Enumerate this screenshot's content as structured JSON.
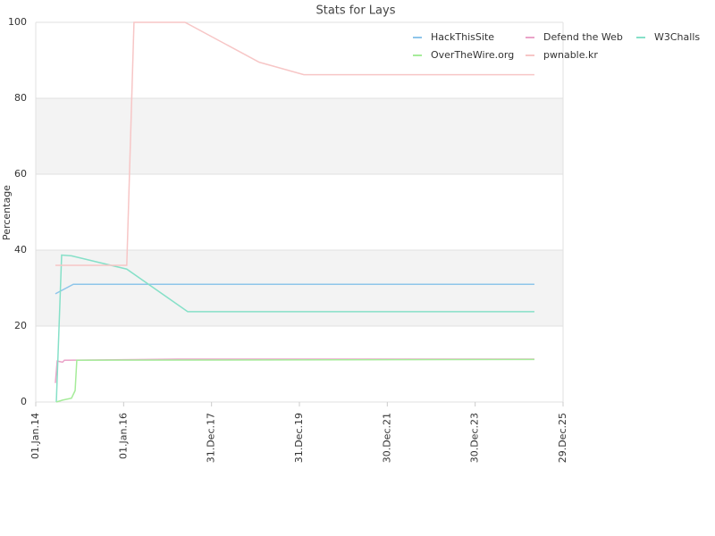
{
  "chart_data": {
    "type": "line",
    "title": "Stats for Lays",
    "ylabel": "Percentage",
    "xlim": [
      "2014-01-01",
      "2025-12-29"
    ],
    "xticks": [
      {
        "value": "2014-01-01",
        "label": "01.Jan.14"
      },
      {
        "value": "2016-01-01",
        "label": "01.Jan.16"
      },
      {
        "value": "2017-12-31",
        "label": "31.Dec.17"
      },
      {
        "value": "2019-12-31",
        "label": "31.Dec.19"
      },
      {
        "value": "2021-12-30",
        "label": "30.Dec.21"
      },
      {
        "value": "2023-12-30",
        "label": "30.Dec.23"
      },
      {
        "value": "2025-12-29",
        "label": "29.Dec.25"
      }
    ],
    "ylim": [
      0,
      100
    ],
    "yticks": [
      0,
      20,
      40,
      60,
      80,
      100
    ],
    "grid": true,
    "series": [
      {
        "name": "HackThisSite",
        "color": "#8ec5ea",
        "x": [
          "2014-06-13",
          "2014-11-09",
          "2025-05-05"
        ],
        "values": [
          28.5,
          31,
          31
        ]
      },
      {
        "name": "Defend the Web",
        "color": "#eaa3c8",
        "x": [
          "2014-06-13",
          "2014-06-28",
          "2014-08-12",
          "2014-08-27",
          "2017-04-03",
          "2025-05-05"
        ],
        "values": [
          5,
          10.8,
          10.5,
          11,
          11.3,
          11.3
        ]
      },
      {
        "name": "W3Challs",
        "color": "#86e0c8",
        "x": [
          "2014-06-21",
          "2014-08-04",
          "2014-10-25",
          "2016-01-27",
          "2017-06-16",
          "2025-05-05"
        ],
        "values": [
          0,
          38.7,
          38.5,
          35,
          23.8,
          23.8
        ]
      },
      {
        "name": "OverTheWire.org",
        "color": "#a6ec9a",
        "x": [
          "2014-06-21",
          "2014-08-12",
          "2014-10-25",
          "2014-11-24",
          "2014-12-08",
          "2025-05-05"
        ],
        "values": [
          0,
          0.5,
          1,
          3,
          11,
          11.2
        ]
      },
      {
        "name": "pwnable.kr",
        "color": "#f7c6c6",
        "x": [
          "2014-06-13",
          "2016-01-27",
          "2016-03-27",
          "2017-05-25",
          "2019-01-31",
          "2020-02-06",
          "2025-05-05"
        ],
        "values": [
          36,
          36,
          100,
          100,
          89.5,
          86.2,
          86.2
        ]
      }
    ]
  }
}
